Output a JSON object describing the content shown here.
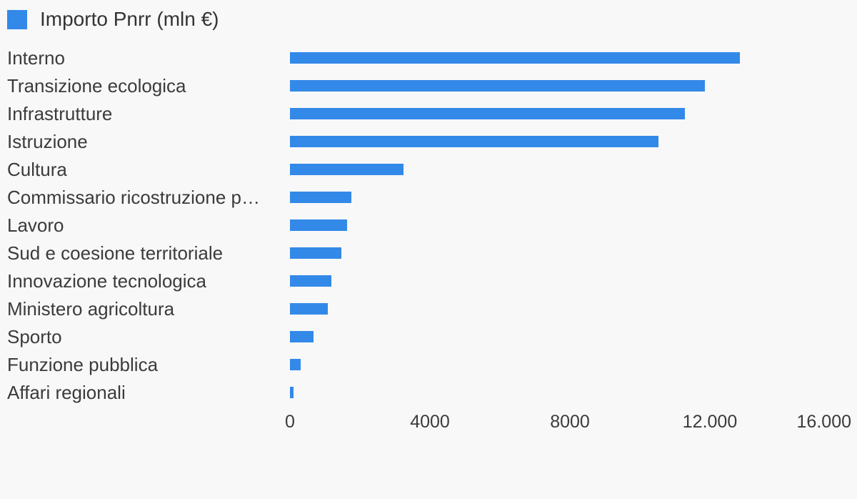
{
  "chart_data": {
    "type": "bar",
    "orientation": "horizontal",
    "title": "",
    "xlabel": "",
    "ylabel": "",
    "legend": "Importo Pnrr (mln €)",
    "legend_position": "top-left",
    "grid": false,
    "categories": [
      "Interno",
      "Transizione ecologica",
      "Infrastrutture",
      "Istruzione",
      "Cultura",
      "Commissario ricostruzione p…",
      "Lavoro",
      "Sud e coesione territoriale",
      "Innovazione tecnologica",
      "Ministero agricoltura",
      "Sporto",
      "Funzione pubblica",
      "Affari regionali"
    ],
    "series": [
      {
        "name": "Importo Pnrr (mln €)",
        "values": [
          12860,
          11860,
          11290,
          10530,
          3250,
          1760,
          1630,
          1470,
          1180,
          1080,
          670,
          310,
          100
        ]
      }
    ],
    "xlim": [
      0,
      16000
    ],
    "x_ticks": [
      {
        "value": 0,
        "label": "0"
      },
      {
        "value": 4000,
        "label": "4000"
      },
      {
        "value": 8000,
        "label": "8000"
      },
      {
        "value": 12000,
        "label": "12.000"
      },
      {
        "value": 16000,
        "label": "16.000"
      }
    ],
    "colors": {
      "bar": "#3389e8",
      "background": "#f8f8f8",
      "text": "#3b3b3b",
      "legend_text": "#333333"
    }
  }
}
